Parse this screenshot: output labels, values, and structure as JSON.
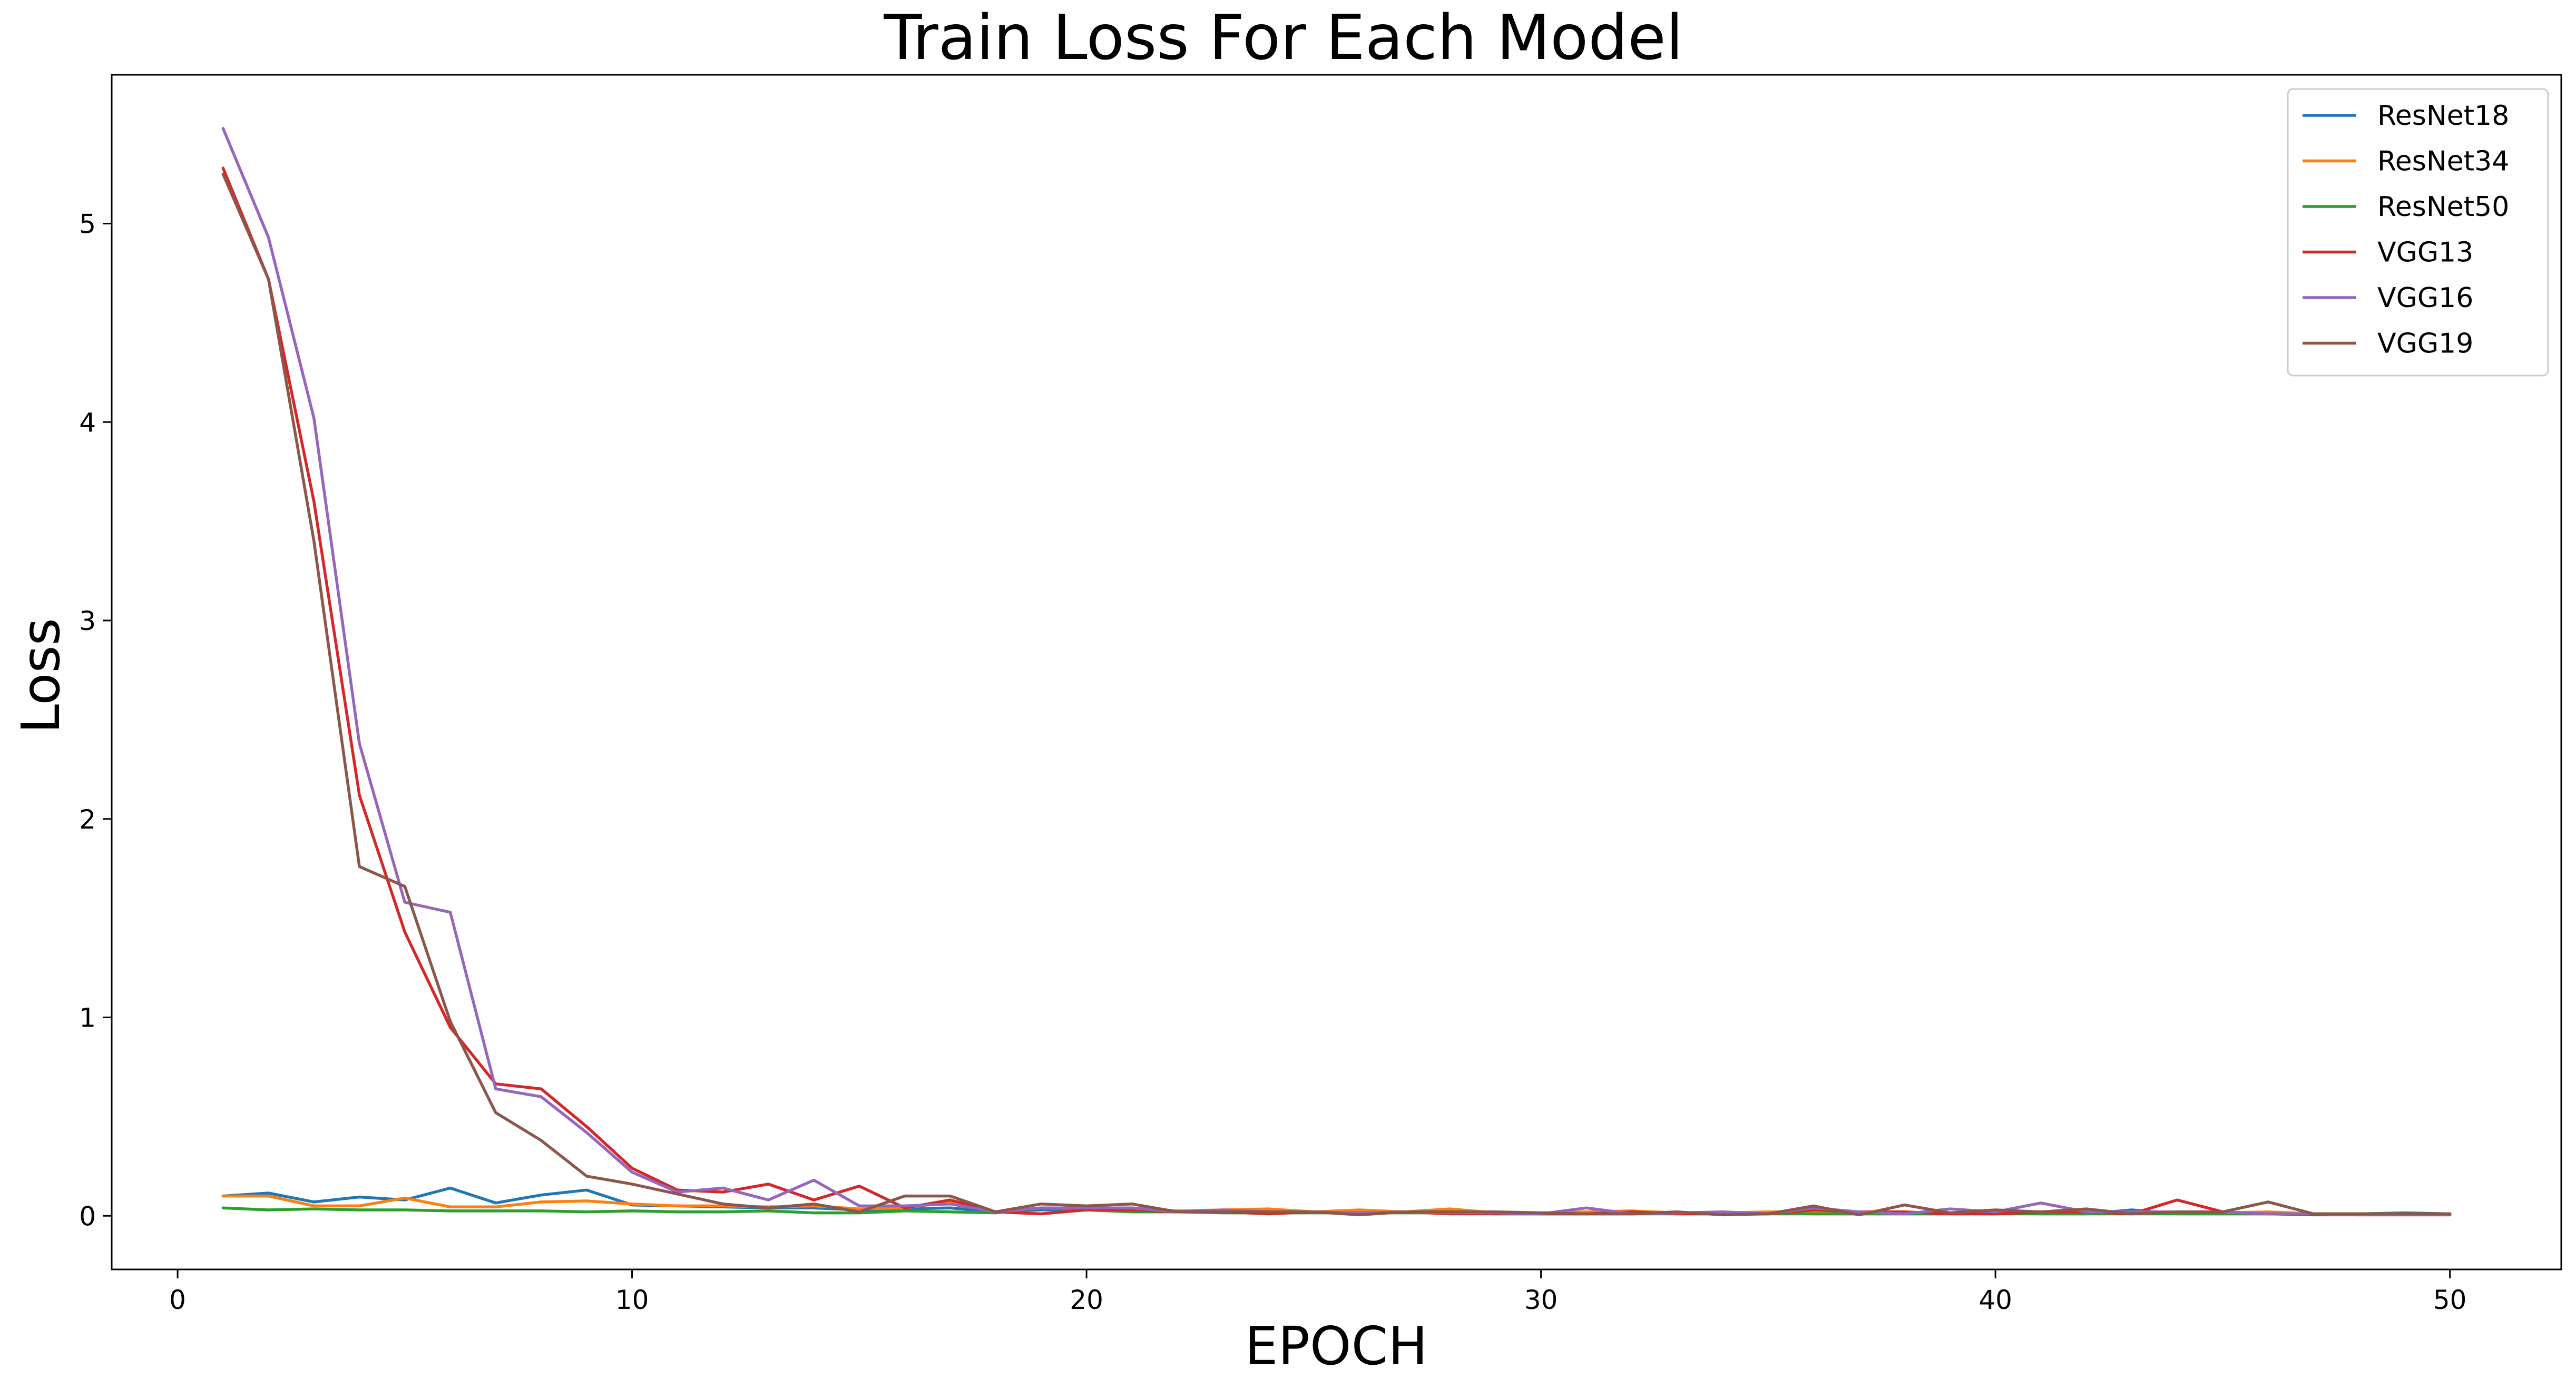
{
  "chart_data": {
    "type": "line",
    "title": "Train Loss For Each Model",
    "xlabel": "EPOCH",
    "ylabel": "Loss",
    "xlim": [
      -1.45,
      52.45
    ],
    "ylim": [
      -0.27,
      5.75
    ],
    "xticks": [
      0,
      10,
      20,
      30,
      40,
      50
    ],
    "yticks": [
      0,
      1,
      2,
      3,
      4,
      5
    ],
    "grid": false,
    "legend_position": "top-right",
    "x": [
      1,
      2,
      3,
      4,
      5,
      6,
      7,
      8,
      9,
      10,
      11,
      12,
      13,
      14,
      15,
      16,
      17,
      18,
      19,
      20,
      21,
      22,
      23,
      24,
      25,
      26,
      27,
      28,
      29,
      30,
      31,
      32,
      33,
      34,
      35,
      36,
      37,
      38,
      39,
      40,
      41,
      42,
      43,
      44,
      45,
      46,
      47,
      48,
      49,
      50
    ],
    "series": [
      {
        "name": "ResNet18",
        "color": "#1f77b4",
        "values": [
          0.1,
          0.115,
          0.07,
          0.095,
          0.08,
          0.14,
          0.065,
          0.105,
          0.13,
          0.055,
          0.05,
          0.045,
          0.04,
          0.04,
          0.03,
          0.035,
          0.04,
          0.02,
          0.03,
          0.03,
          0.03,
          0.025,
          0.02,
          0.02,
          0.02,
          0.015,
          0.02,
          0.015,
          0.015,
          0.01,
          0.01,
          0.01,
          0.015,
          0.01,
          0.015,
          0.01,
          0.01,
          0.01,
          0.01,
          0.015,
          0.01,
          0.01,
          0.03,
          0.01,
          0.01,
          0.01,
          0.01,
          0.01,
          0.015,
          0.01
        ]
      },
      {
        "name": "ResNet34",
        "color": "#ff7f0e",
        "values": [
          0.1,
          0.1,
          0.05,
          0.05,
          0.09,
          0.045,
          0.045,
          0.07,
          0.075,
          0.06,
          0.05,
          0.05,
          0.045,
          0.05,
          0.035,
          0.04,
          0.07,
          0.02,
          0.04,
          0.035,
          0.04,
          0.025,
          0.03,
          0.035,
          0.02,
          0.03,
          0.02,
          0.035,
          0.015,
          0.015,
          0.02,
          0.025,
          0.015,
          0.015,
          0.02,
          0.02,
          0.015,
          0.015,
          0.015,
          0.02,
          0.015,
          0.02,
          0.015,
          0.015,
          0.015,
          0.02,
          0.01,
          0.01,
          0.01,
          0.01
        ]
      },
      {
        "name": "ResNet50",
        "color": "#2ca02c",
        "values": [
          0.04,
          0.03,
          0.035,
          0.03,
          0.03,
          0.025,
          0.025,
          0.025,
          0.02,
          0.025,
          0.02,
          0.02,
          0.025,
          0.015,
          0.015,
          0.025,
          0.02,
          0.015,
          0.04,
          0.03,
          0.02,
          0.02,
          0.015,
          0.015,
          0.015,
          0.015,
          0.015,
          0.015,
          0.01,
          0.01,
          0.01,
          0.01,
          0.01,
          0.01,
          0.01,
          0.01,
          0.01,
          0.01,
          0.01,
          0.01,
          0.01,
          0.01,
          0.01,
          0.01,
          0.01,
          0.01,
          0.01,
          0.01,
          0.01,
          0.01
        ]
      },
      {
        "name": "VGG13",
        "color": "#d62728",
        "values": [
          5.28,
          4.72,
          3.6,
          2.12,
          1.43,
          0.95,
          0.665,
          0.64,
          0.45,
          0.24,
          0.13,
          0.12,
          0.16,
          0.08,
          0.15,
          0.04,
          0.08,
          0.02,
          0.01,
          0.03,
          0.03,
          0.02,
          0.02,
          0.01,
          0.02,
          0.01,
          0.02,
          0.01,
          0.01,
          0.01,
          0.01,
          0.02,
          0.01,
          0.01,
          0.01,
          0.03,
          0.02,
          0.02,
          0.01,
          0.01,
          0.02,
          0.02,
          0.01,
          0.08,
          0.02,
          0.01,
          0.005,
          0.005,
          0.005,
          0.005
        ]
      },
      {
        "name": "VGG16",
        "color": "#9467bd",
        "values": [
          5.48,
          4.93,
          4.02,
          2.38,
          1.58,
          1.53,
          0.64,
          0.6,
          0.42,
          0.22,
          0.12,
          0.14,
          0.08,
          0.18,
          0.05,
          0.05,
          0.06,
          0.02,
          0.04,
          0.04,
          0.04,
          0.02,
          0.03,
          0.02,
          0.02,
          0.015,
          0.02,
          0.015,
          0.015,
          0.01,
          0.04,
          0.01,
          0.015,
          0.02,
          0.01,
          0.04,
          0.02,
          0.01,
          0.035,
          0.02,
          0.065,
          0.02,
          0.02,
          0.02,
          0.02,
          0.01,
          0.01,
          0.005,
          0.005,
          0.005
        ]
      },
      {
        "name": "VGG19",
        "color": "#8c564b",
        "values": [
          5.25,
          4.72,
          3.4,
          1.76,
          1.66,
          0.98,
          0.52,
          0.38,
          0.2,
          0.16,
          0.11,
          0.06,
          0.04,
          0.06,
          0.02,
          0.1,
          0.1,
          0.02,
          0.06,
          0.05,
          0.06,
          0.02,
          0.02,
          0.02,
          0.02,
          0.005,
          0.02,
          0.02,
          0.02,
          0.015,
          0.01,
          0.01,
          0.02,
          0.005,
          0.01,
          0.05,
          0.005,
          0.055,
          0.015,
          0.03,
          0.02,
          0.035,
          0.01,
          0.02,
          0.02,
          0.07,
          0.01,
          0.01,
          0.01,
          0.01
        ]
      }
    ]
  }
}
